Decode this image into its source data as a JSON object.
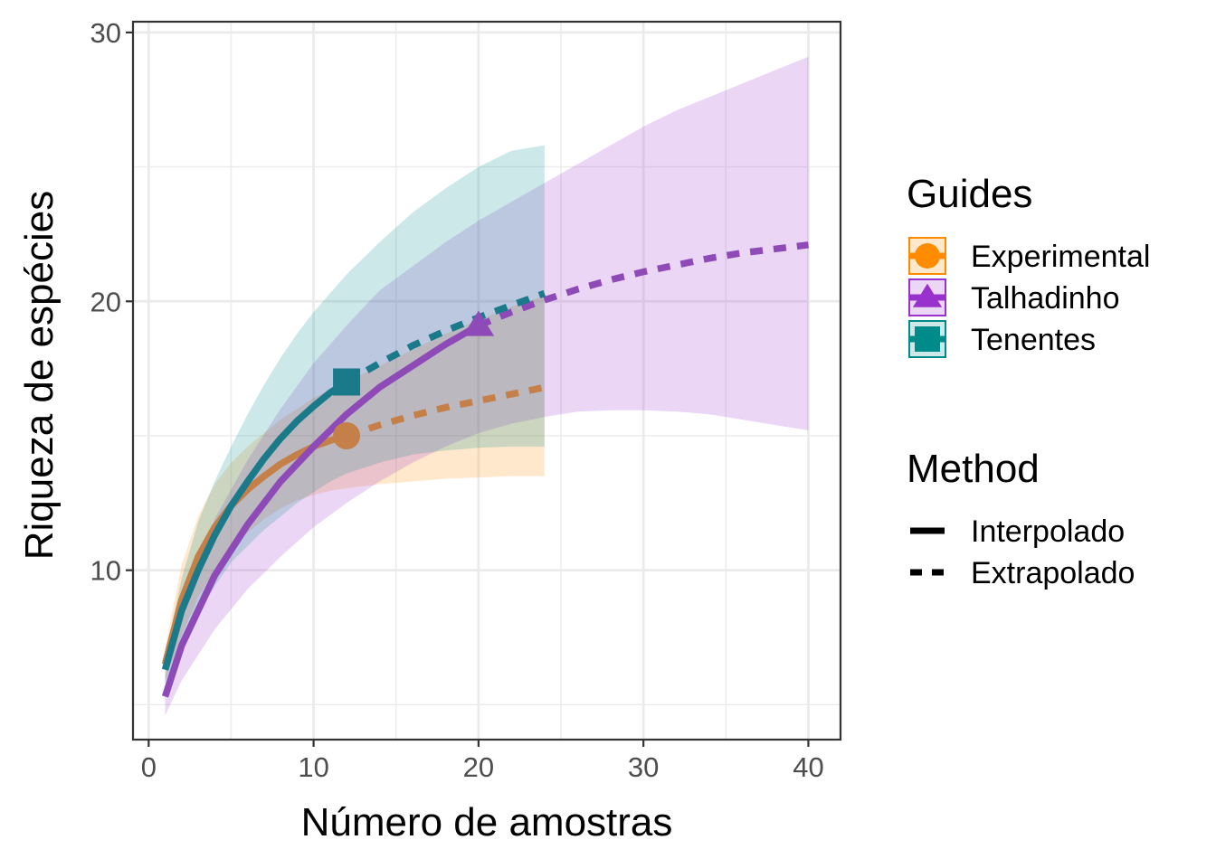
{
  "chart_data": {
    "type": "line",
    "xlabel": "Número de amostras",
    "ylabel": "Riqueza de espécies",
    "xlim": [
      -0.95,
      41.95
    ],
    "ylim": [
      3.7,
      30.4
    ],
    "xticks": [
      0,
      10,
      20,
      30,
      40
    ],
    "xtick_labels": [
      "0",
      "10",
      "20",
      "30",
      "40"
    ],
    "yticks": [
      10,
      20,
      30
    ],
    "ytick_labels": [
      "10",
      "20",
      "30"
    ],
    "grid": true,
    "legend_position": "right",
    "series": [
      {
        "name": "Experimental",
        "color": "#ff8c00",
        "line_color": "#c5804a",
        "marker": "circle",
        "observed": [
          12,
          15.0
        ],
        "x": [
          1,
          2,
          3,
          4,
          5,
          6,
          7,
          8,
          9,
          10,
          11,
          12,
          14,
          16,
          18,
          20,
          22,
          24
        ],
        "y": [
          6.5,
          8.9,
          10.5,
          11.6,
          12.4,
          13.0,
          13.5,
          13.95,
          14.3,
          14.6,
          14.82,
          15.0,
          15.4,
          15.75,
          16.05,
          16.3,
          16.55,
          16.8
        ],
        "lower": [
          5.9,
          7.6,
          9.0,
          10.0,
          10.8,
          11.4,
          11.9,
          12.3,
          12.6,
          12.8,
          12.95,
          13.05,
          13.2,
          13.3,
          13.4,
          13.45,
          13.5,
          13.5
        ],
        "upper": [
          7.1,
          10.2,
          12.0,
          13.2,
          14.0,
          14.6,
          15.1,
          15.6,
          16.0,
          16.4,
          16.7,
          17.0,
          17.6,
          18.2,
          18.8,
          19.3,
          19.8,
          20.2
        ],
        "interpolated_until": 12
      },
      {
        "name": "Talhadinho",
        "color": "#9932cc",
        "line_color": "#8e4bb8",
        "marker": "triangle",
        "observed": [
          20,
          19.1
        ],
        "x": [
          1,
          2,
          4,
          6,
          8,
          10,
          12,
          14,
          16,
          18,
          20,
          22,
          24,
          26,
          28,
          30,
          32,
          34,
          36,
          38,
          40
        ],
        "y": [
          5.3,
          7.2,
          9.8,
          11.7,
          13.3,
          14.6,
          15.8,
          16.8,
          17.6,
          18.4,
          19.1,
          19.6,
          20.05,
          20.45,
          20.8,
          21.1,
          21.35,
          21.6,
          21.8,
          21.95,
          22.1
        ],
        "lower": [
          4.6,
          5.9,
          7.8,
          9.3,
          10.5,
          11.6,
          12.5,
          13.3,
          14.0,
          14.6,
          15.1,
          15.45,
          15.7,
          15.9,
          15.95,
          15.95,
          15.9,
          15.8,
          15.6,
          15.4,
          15.2
        ],
        "upper": [
          6.0,
          8.6,
          11.9,
          14.1,
          16.0,
          17.7,
          19.1,
          20.4,
          21.3,
          22.2,
          23.0,
          23.7,
          24.4,
          25.1,
          25.8,
          26.5,
          27.1,
          27.6,
          28.1,
          28.6,
          29.1
        ],
        "interpolated_until": 20
      },
      {
        "name": "Tenentes",
        "color": "#008b8b",
        "line_color": "#1a7a8a",
        "marker": "square",
        "observed": [
          12,
          17.0
        ],
        "x": [
          1,
          2,
          3,
          4,
          5,
          6,
          7,
          8,
          9,
          10,
          11,
          12,
          14,
          16,
          18,
          20,
          22,
          24
        ],
        "y": [
          6.3,
          8.5,
          10.0,
          11.3,
          12.4,
          13.3,
          14.15,
          14.9,
          15.55,
          16.1,
          16.6,
          17.0,
          17.7,
          18.35,
          18.9,
          19.4,
          19.85,
          20.3
        ],
        "lower": [
          5.8,
          7.3,
          8.4,
          9.4,
          10.3,
          10.9,
          11.5,
          12.0,
          12.5,
          12.9,
          13.3,
          13.6,
          14.0,
          14.3,
          14.45,
          14.55,
          14.6,
          14.6
        ],
        "upper": [
          6.8,
          9.7,
          11.8,
          13.3,
          14.6,
          15.8,
          16.9,
          17.9,
          18.8,
          19.6,
          20.3,
          21.0,
          22.2,
          23.3,
          24.2,
          25.0,
          25.6,
          25.8
        ],
        "interpolated_until": 12
      }
    ],
    "legends": [
      {
        "title": "Guides",
        "entries": [
          {
            "label": "Experimental",
            "color": "#ff8c00",
            "marker": "circle"
          },
          {
            "label": "Talhadinho",
            "color": "#9932cc",
            "marker": "triangle"
          },
          {
            "label": "Tenentes",
            "color": "#008b8b",
            "marker": "square"
          }
        ]
      },
      {
        "title": "Method",
        "entries": [
          {
            "label": "Interpolado",
            "linetype": "solid"
          },
          {
            "label": "Extrapolado",
            "linetype": "dashed"
          }
        ]
      }
    ]
  }
}
